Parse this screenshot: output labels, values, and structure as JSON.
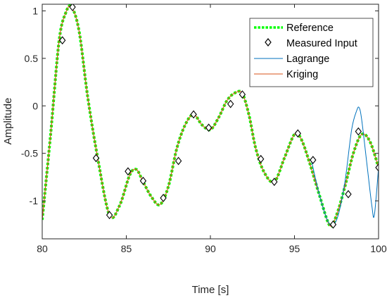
{
  "chart_data": {
    "type": "line",
    "xlabel": "Time [s]",
    "ylabel": "Amplitude",
    "xlim": [
      80,
      100
    ],
    "ylim": [
      -1.4,
      1.07
    ],
    "xticks": [
      80,
      85,
      90,
      95,
      100
    ],
    "yticks": [
      1,
      0.5,
      0,
      -0.5,
      -1
    ],
    "xtick_labels": [
      "80",
      "85",
      "90",
      "95",
      "100"
    ],
    "ytick_labels": [
      "1",
      "0.5",
      "0",
      "-0.5",
      "-1"
    ],
    "grid": false,
    "legend_position": "top-right",
    "legend": [
      "Reference",
      "Measured Input",
      "Lagrange",
      "Kriging"
    ],
    "colors": {
      "reference": "#00ff00",
      "measured": "#000000",
      "lagrange": "#0072bd",
      "kriging": "#d95319",
      "axes": "#262626"
    },
    "series": [
      {
        "name": "Reference",
        "style": "dotted",
        "x": [
          80,
          80.5,
          81,
          81.4,
          81.75,
          82.2,
          82.7,
          83.3,
          84,
          84.6,
          85.2,
          85.6,
          86,
          86.5,
          87,
          87.5,
          88,
          88.5,
          89,
          89.5,
          90,
          90.5,
          91,
          91.5,
          91.9,
          92.3,
          92.7,
          93.2,
          93.8,
          94.4,
          95,
          95.4,
          95.9,
          96.5,
          97.1,
          97.5,
          98,
          98.5,
          99,
          99.5,
          100
        ],
        "y": [
          -1.2,
          -0.3,
          0.68,
          0.98,
          1.04,
          0.78,
          0.1,
          -0.55,
          -1.15,
          -1.05,
          -0.73,
          -0.67,
          -0.8,
          -0.96,
          -1.04,
          -0.85,
          -0.45,
          -0.2,
          -0.09,
          -0.2,
          -0.25,
          -0.12,
          0.06,
          0.14,
          0.13,
          -0.1,
          -0.45,
          -0.7,
          -0.8,
          -0.55,
          -0.3,
          -0.35,
          -0.6,
          -0.95,
          -1.26,
          -1.15,
          -0.85,
          -0.5,
          -0.3,
          -0.38,
          -0.65
        ]
      },
      {
        "name": "Measured Input",
        "style": "diamond",
        "x": [
          81.2,
          81.8,
          83.2,
          84,
          85.1,
          86,
          87.2,
          88.1,
          89,
          89.9,
          91.2,
          91.9,
          93,
          93.8,
          95.2,
          96.1,
          97.3,
          98.2,
          98.8,
          100
        ],
        "y": [
          0.69,
          1.04,
          -0.55,
          -1.15,
          -0.69,
          -0.79,
          -0.97,
          -0.58,
          -0.09,
          -0.23,
          0.02,
          0.12,
          -0.56,
          -0.8,
          -0.29,
          -0.57,
          -1.25,
          -0.93,
          -0.27,
          -0.65
        ]
      },
      {
        "name": "Lagrange",
        "style": "solid",
        "x": [
          96,
          96.5,
          97,
          97.3,
          97.6,
          98,
          98.4,
          98.7,
          98.85,
          99,
          99.3,
          99.6,
          99.75,
          100
        ],
        "y": [
          -0.57,
          -0.95,
          -1.22,
          -1.25,
          -1.15,
          -0.8,
          -0.25,
          -0.05,
          -0.02,
          -0.15,
          -0.6,
          -1.05,
          -1.15,
          -0.65
        ]
      },
      {
        "name": "Kriging",
        "style": "solid",
        "x": [
          80,
          80.5,
          81,
          81.4,
          81.75,
          82.2,
          82.7,
          83.3,
          84,
          84.6,
          85.2,
          85.6,
          86,
          86.5,
          87,
          87.5,
          88,
          88.5,
          89,
          89.5,
          90,
          90.5,
          91,
          91.5,
          91.9,
          92.3,
          92.7,
          93.2,
          93.8,
          94.4,
          95,
          95.4,
          95.9,
          96.5,
          97.1,
          97.5,
          98,
          98.5,
          99,
          99.5,
          100
        ],
        "y": [
          -1.2,
          -0.3,
          0.68,
          0.98,
          1.04,
          0.78,
          0.1,
          -0.55,
          -1.15,
          -1.05,
          -0.73,
          -0.67,
          -0.8,
          -0.96,
          -1.04,
          -0.85,
          -0.45,
          -0.2,
          -0.09,
          -0.2,
          -0.25,
          -0.12,
          0.06,
          0.14,
          0.13,
          -0.1,
          -0.45,
          -0.7,
          -0.8,
          -0.55,
          -0.3,
          -0.35,
          -0.6,
          -0.95,
          -1.26,
          -1.15,
          -0.85,
          -0.5,
          -0.3,
          -0.38,
          -0.65
        ]
      }
    ]
  }
}
